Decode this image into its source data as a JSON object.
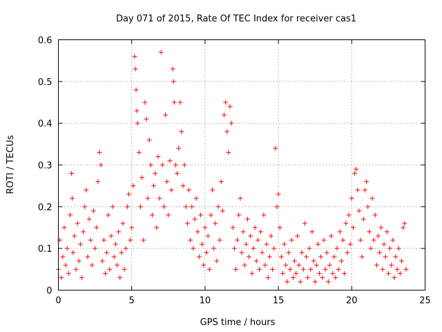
{
  "chart_data": {
    "type": "scatter",
    "title": "Day 071 of 2015, Rate Of TEC Index for receiver cas1",
    "xlabel": "GPS time / hours",
    "ylabel": "ROTI / TECUs",
    "xlim": [
      0,
      25
    ],
    "ylim": [
      0,
      0.6
    ],
    "xticks": [
      0,
      5,
      10,
      15,
      20,
      25
    ],
    "xtick_labels": [
      "0",
      "5",
      "10",
      "15",
      "20",
      "25"
    ],
    "yticks": [
      0,
      0.1,
      0.2,
      0.3,
      0.4,
      0.5,
      0.6
    ],
    "ytick_labels": [
      "0",
      "0.1",
      "0.2",
      "0.3",
      "0.4",
      "0.5",
      "0.6"
    ],
    "grid": true,
    "marker": "+",
    "color": "#ff0000",
    "series": [
      {
        "name": "ROTI",
        "points": [
          [
            0.0,
            0.05
          ],
          [
            0.1,
            0.12
          ],
          [
            0.2,
            0.03
          ],
          [
            0.3,
            0.08
          ],
          [
            0.4,
            0.15
          ],
          [
            0.5,
            0.06
          ],
          [
            0.6,
            0.1
          ],
          [
            0.7,
            0.04
          ],
          [
            0.8,
            0.18
          ],
          [
            0.9,
            0.28
          ],
          [
            0.95,
            0.22
          ],
          [
            1.0,
            0.09
          ],
          [
            1.1,
            0.13
          ],
          [
            1.2,
            0.05
          ],
          [
            1.3,
            0.16
          ],
          [
            1.4,
            0.07
          ],
          [
            1.5,
            0.11
          ],
          [
            1.6,
            0.03
          ],
          [
            1.7,
            0.14
          ],
          [
            1.8,
            0.2
          ],
          [
            1.9,
            0.24
          ],
          [
            2.0,
            0.08
          ],
          [
            2.1,
            0.17
          ],
          [
            2.2,
            0.12
          ],
          [
            2.3,
            0.06
          ],
          [
            2.4,
            0.19
          ],
          [
            2.5,
            0.1
          ],
          [
            2.6,
            0.15
          ],
          [
            2.7,
            0.26
          ],
          [
            2.8,
            0.33
          ],
          [
            2.9,
            0.3
          ],
          [
            3.0,
            0.07
          ],
          [
            3.1,
            0.12
          ],
          [
            3.2,
            0.04
          ],
          [
            3.3,
            0.09
          ],
          [
            3.4,
            0.18
          ],
          [
            3.5,
            0.05
          ],
          [
            3.6,
            0.13
          ],
          [
            3.7,
            0.2
          ],
          [
            3.8,
            0.08
          ],
          [
            3.9,
            0.11
          ],
          [
            4.0,
            0.06
          ],
          [
            4.1,
            0.14
          ],
          [
            4.2,
            0.03
          ],
          [
            4.3,
            0.09
          ],
          [
            4.4,
            0.16
          ],
          [
            4.5,
            0.05
          ],
          [
            4.6,
            0.1
          ],
          [
            4.7,
            0.2
          ],
          [
            4.8,
            0.23
          ],
          [
            4.9,
            0.12
          ],
          [
            5.0,
            0.15
          ],
          [
            5.1,
            0.25
          ],
          [
            5.2,
            0.56
          ],
          [
            5.25,
            0.53
          ],
          [
            5.3,
            0.48
          ],
          [
            5.35,
            0.43
          ],
          [
            5.4,
            0.4
          ],
          [
            5.5,
            0.33
          ],
          [
            5.6,
            0.2
          ],
          [
            5.7,
            0.27
          ],
          [
            5.8,
            0.12
          ],
          [
            5.9,
            0.45
          ],
          [
            6.0,
            0.41
          ],
          [
            6.1,
            0.22
          ],
          [
            6.2,
            0.36
          ],
          [
            6.3,
            0.3
          ],
          [
            6.4,
            0.18
          ],
          [
            6.5,
            0.25
          ],
          [
            6.6,
            0.28
          ],
          [
            6.7,
            0.15
          ],
          [
            6.8,
            0.32
          ],
          [
            6.9,
            0.22
          ],
          [
            7.0,
            0.57
          ],
          [
            7.1,
            0.3
          ],
          [
            7.2,
            0.2
          ],
          [
            7.3,
            0.42
          ],
          [
            7.4,
            0.26
          ],
          [
            7.5,
            0.18
          ],
          [
            7.6,
            0.31
          ],
          [
            7.7,
            0.24
          ],
          [
            7.8,
            0.53
          ],
          [
            7.85,
            0.5
          ],
          [
            7.9,
            0.45
          ],
          [
            8.0,
            0.3
          ],
          [
            8.1,
            0.28
          ],
          [
            8.2,
            0.34
          ],
          [
            8.3,
            0.45
          ],
          [
            8.4,
            0.38
          ],
          [
            8.5,
            0.25
          ],
          [
            8.6,
            0.3
          ],
          [
            8.7,
            0.2
          ],
          [
            8.8,
            0.16
          ],
          [
            8.9,
            0.24
          ],
          [
            9.0,
            0.12
          ],
          [
            9.1,
            0.2
          ],
          [
            9.2,
            0.1
          ],
          [
            9.3,
            0.17
          ],
          [
            9.4,
            0.22
          ],
          [
            9.5,
            0.14
          ],
          [
            9.6,
            0.08
          ],
          [
            9.7,
            0.18
          ],
          [
            9.8,
            0.11
          ],
          [
            9.9,
            0.06
          ],
          [
            10.0,
            0.15
          ],
          [
            10.1,
            0.09
          ],
          [
            10.2,
            0.13
          ],
          [
            10.3,
            0.05
          ],
          [
            10.4,
            0.18
          ],
          [
            10.5,
            0.24
          ],
          [
            10.6,
            0.1
          ],
          [
            10.7,
            0.16
          ],
          [
            10.8,
            0.07
          ],
          [
            10.9,
            0.2
          ],
          [
            11.0,
            0.12
          ],
          [
            11.1,
            0.26
          ],
          [
            11.2,
            0.19
          ],
          [
            11.3,
            0.42
          ],
          [
            11.4,
            0.45
          ],
          [
            11.5,
            0.38
          ],
          [
            11.6,
            0.33
          ],
          [
            11.7,
            0.44
          ],
          [
            11.8,
            0.4
          ],
          [
            11.9,
            0.15
          ],
          [
            12.0,
            0.1
          ],
          [
            12.1,
            0.05
          ],
          [
            12.2,
            0.12
          ],
          [
            12.3,
            0.18
          ],
          [
            12.4,
            0.22
          ],
          [
            12.5,
            0.09
          ],
          [
            12.6,
            0.14
          ],
          [
            12.7,
            0.06
          ],
          [
            12.8,
            0.11
          ],
          [
            12.9,
            0.17
          ],
          [
            13.0,
            0.08
          ],
          [
            13.1,
            0.13
          ],
          [
            13.2,
            0.04
          ],
          [
            13.3,
            0.1
          ],
          [
            13.4,
            0.15
          ],
          [
            13.5,
            0.07
          ],
          [
            13.6,
            0.12
          ],
          [
            13.7,
            0.05
          ],
          [
            13.8,
            0.14
          ],
          [
            13.9,
            0.09
          ],
          [
            14.0,
            0.18
          ],
          [
            14.1,
            0.06
          ],
          [
            14.2,
            0.11
          ],
          [
            14.3,
            0.03
          ],
          [
            14.4,
            0.08
          ],
          [
            14.5,
            0.13
          ],
          [
            14.6,
            0.05
          ],
          [
            14.7,
            0.1
          ],
          [
            14.8,
            0.34
          ],
          [
            14.9,
            0.2
          ],
          [
            15.0,
            0.23
          ],
          [
            15.1,
            0.15
          ],
          [
            15.2,
            0.08
          ],
          [
            15.3,
            0.04
          ],
          [
            15.4,
            0.11
          ],
          [
            15.5,
            0.06
          ],
          [
            15.6,
            0.02
          ],
          [
            15.7,
            0.09
          ],
          [
            15.8,
            0.05
          ],
          [
            15.9,
            0.12
          ],
          [
            16.0,
            0.03
          ],
          [
            16.1,
            0.07
          ],
          [
            16.2,
            0.04
          ],
          [
            16.3,
            0.13
          ],
          [
            16.4,
            0.06
          ],
          [
            16.5,
            0.02
          ],
          [
            16.6,
            0.09
          ],
          [
            16.7,
            0.05
          ],
          [
            16.8,
            0.16
          ],
          [
            16.9,
            0.08
          ],
          [
            17.0,
            0.03
          ],
          [
            17.1,
            0.1
          ],
          [
            17.2,
            0.05
          ],
          [
            17.3,
            0.14
          ],
          [
            17.4,
            0.07
          ],
          [
            17.5,
            0.02
          ],
          [
            17.6,
            0.06
          ],
          [
            17.7,
            0.11
          ],
          [
            17.8,
            0.04
          ],
          [
            17.9,
            0.08
          ],
          [
            18.0,
            0.03
          ],
          [
            18.1,
            0.12
          ],
          [
            18.2,
            0.05
          ],
          [
            18.3,
            0.09
          ],
          [
            18.4,
            0.02
          ],
          [
            18.5,
            0.06
          ],
          [
            18.6,
            0.13
          ],
          [
            18.7,
            0.04
          ],
          [
            18.8,
            0.08
          ],
          [
            18.9,
            0.03
          ],
          [
            19.0,
            0.1
          ],
          [
            19.1,
            0.05
          ],
          [
            19.2,
            0.14
          ],
          [
            19.3,
            0.07
          ],
          [
            19.4,
            0.12
          ],
          [
            19.5,
            0.04
          ],
          [
            19.6,
            0.16
          ],
          [
            19.7,
            0.09
          ],
          [
            19.8,
            0.18
          ],
          [
            19.9,
            0.11
          ],
          [
            20.0,
            0.22
          ],
          [
            20.1,
            0.15
          ],
          [
            20.2,
            0.28
          ],
          [
            20.3,
            0.29
          ],
          [
            20.4,
            0.24
          ],
          [
            20.5,
            0.19
          ],
          [
            20.6,
            0.12
          ],
          [
            20.7,
            0.08
          ],
          [
            20.8,
            0.17
          ],
          [
            20.9,
            0.24
          ],
          [
            21.0,
            0.26
          ],
          [
            21.1,
            0.2
          ],
          [
            21.2,
            0.14
          ],
          [
            21.3,
            0.1
          ],
          [
            21.4,
            0.22
          ],
          [
            21.5,
            0.12
          ],
          [
            21.6,
            0.18
          ],
          [
            21.7,
            0.06
          ],
          [
            21.8,
            0.13
          ],
          [
            21.9,
            0.09
          ],
          [
            22.0,
            0.15
          ],
          [
            22.1,
            0.05
          ],
          [
            22.2,
            0.11
          ],
          [
            22.3,
            0.08
          ],
          [
            22.4,
            0.14
          ],
          [
            22.5,
            0.04
          ],
          [
            22.6,
            0.1
          ],
          [
            22.7,
            0.06
          ],
          [
            22.8,
            0.12
          ],
          [
            22.9,
            0.03
          ],
          [
            23.0,
            0.08
          ],
          [
            23.1,
            0.05
          ],
          [
            23.2,
            0.1
          ],
          [
            23.3,
            0.04
          ],
          [
            23.4,
            0.07
          ],
          [
            23.5,
            0.15
          ],
          [
            23.6,
            0.16
          ],
          [
            23.7,
            0.05
          ]
        ]
      }
    ]
  }
}
